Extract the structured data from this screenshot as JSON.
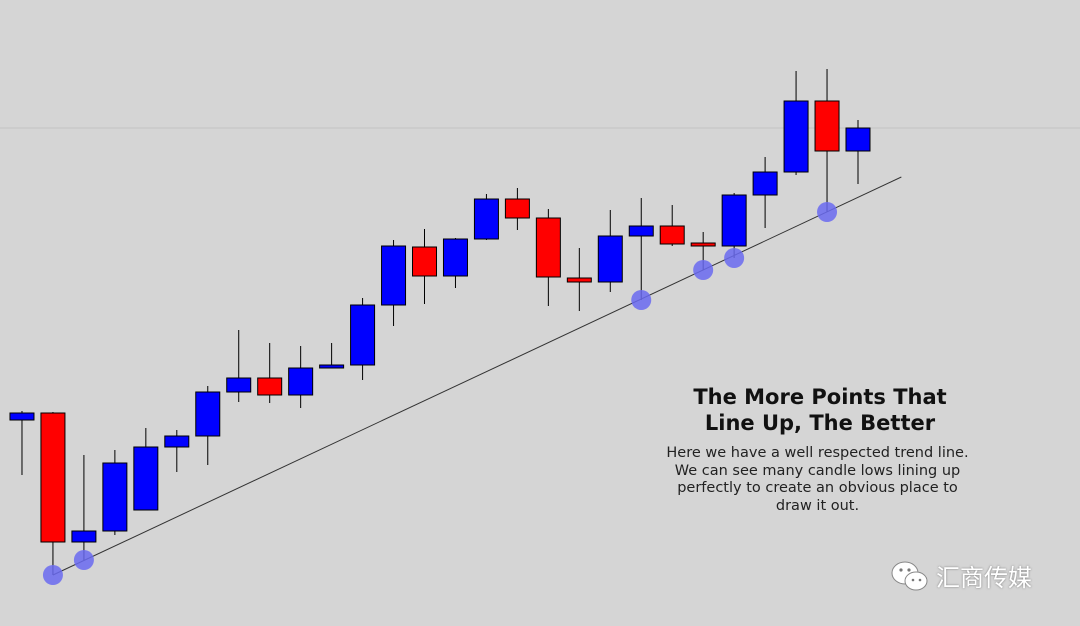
{
  "chart_data": {
    "type": "candlestick",
    "annotation_title": "The More Points That Line Up, The Better",
    "annotation_text": "Here we have a well respected trend line. We can see many candle lows lining up perfectly to create an obvious place to draw it out.",
    "open": [
      206,
      213,
      84,
      95,
      116,
      179,
      190,
      234,
      248,
      231,
      258,
      261,
      321,
      379,
      350,
      387,
      427,
      408,
      348,
      344,
      390,
      400,
      383,
      380,
      431,
      454,
      525,
      475
    ],
    "close": [
      213,
      84,
      95,
      163,
      179,
      190,
      234,
      248,
      231,
      258,
      261,
      321,
      380,
      350,
      387,
      427,
      408,
      349,
      344,
      390,
      400,
      382,
      380,
      431,
      454,
      525,
      475,
      498
    ],
    "high": [
      215,
      214,
      171,
      176,
      198,
      196,
      240,
      296,
      283,
      280,
      283,
      328,
      386,
      397,
      388,
      432,
      438,
      417,
      378,
      416,
      428,
      421,
      394,
      433,
      469,
      555,
      557,
      506
    ],
    "low": [
      151,
      51,
      66,
      91,
      116,
      154,
      161,
      224,
      223,
      218,
      258,
      246,
      300,
      322,
      338,
      386,
      396,
      320,
      315,
      334,
      326,
      380,
      356,
      368,
      398,
      451,
      414,
      442
    ],
    "up_color": "#0000ff",
    "down_color": "#ff0000",
    "highlight_points": [
      1,
      2,
      20,
      22,
      23,
      26
    ],
    "highlight_color": "#6a6af0",
    "trendline": {
      "x": [
        1,
        28.4
      ],
      "y": [
        51,
        449
      ]
    },
    "hline": 498,
    "xlim": [
      -0.71,
      34.17
    ],
    "ylim": [
      0,
      626
    ],
    "watermark": "汇商传媒"
  }
}
